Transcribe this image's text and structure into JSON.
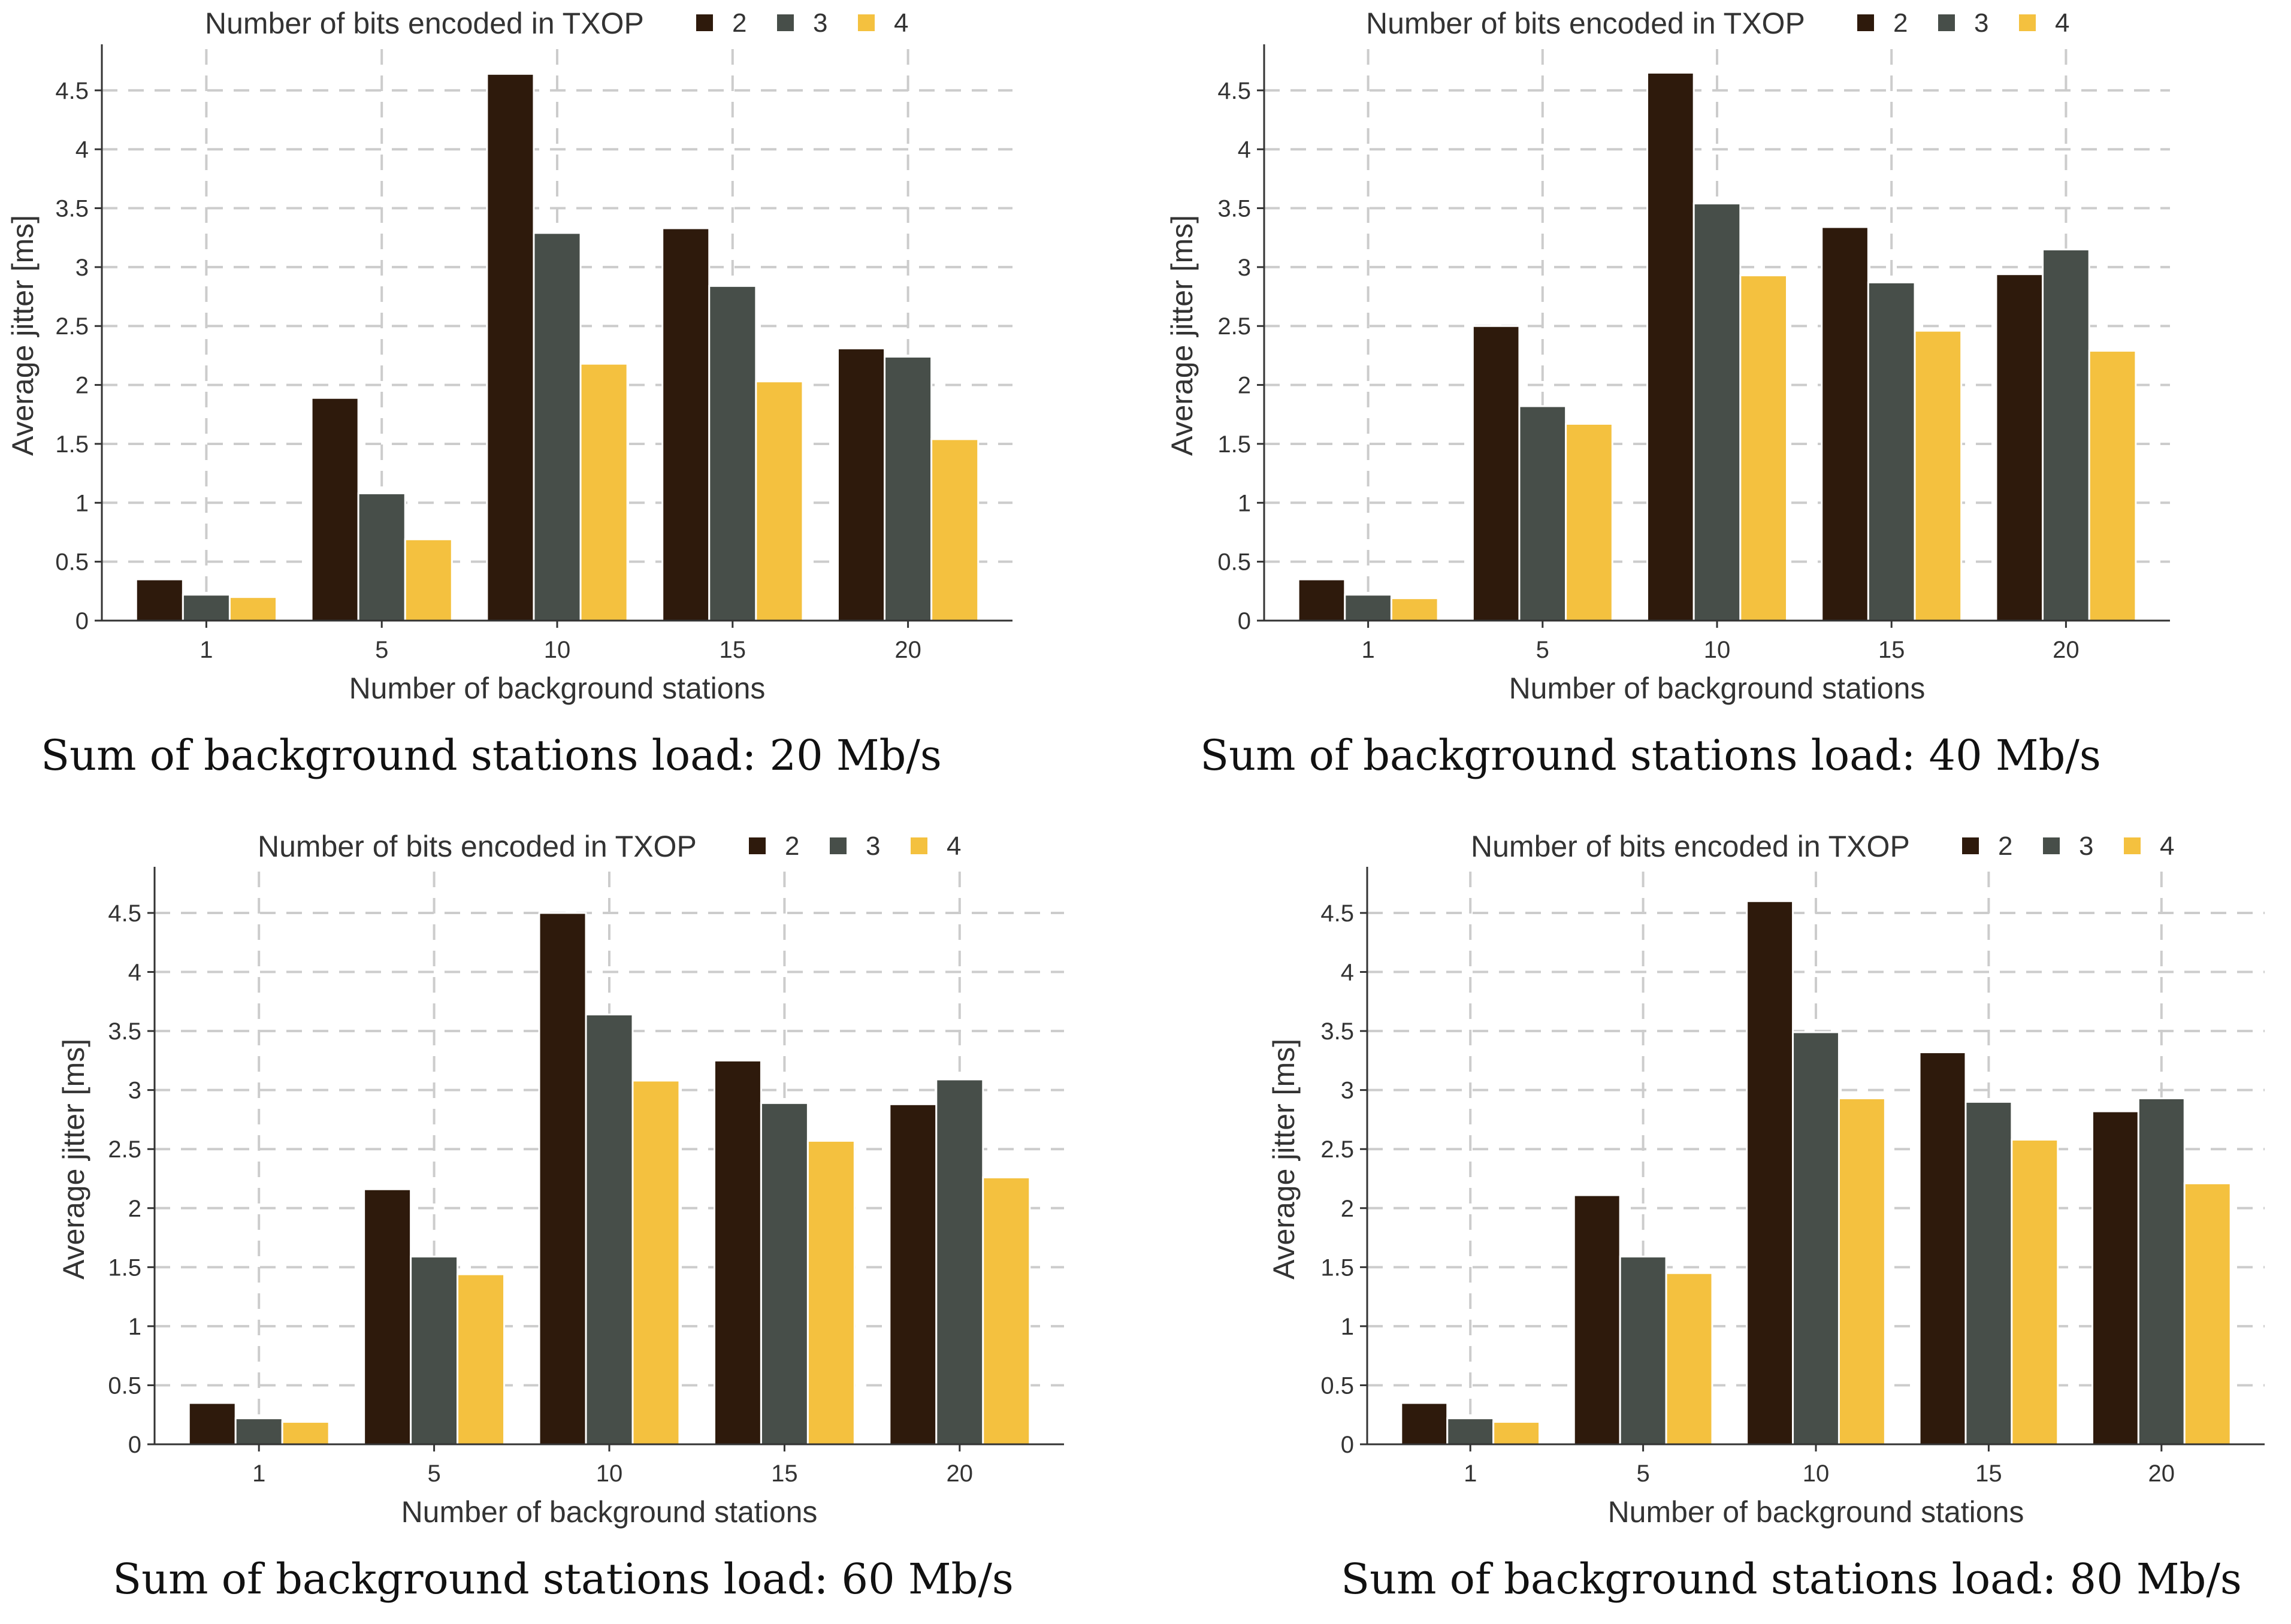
{
  "figure": {
    "colors": {
      "2": "#2e1a0c",
      "3": "#474e49",
      "4": "#f4c13f"
    },
    "legend_title": "Number of bits encoded in TXOP"
  },
  "chart_data": [
    {
      "type": "bar",
      "caption": "Sum of background stations load: 20 Mb/s",
      "xlabel": "Number of background stations",
      "ylabel": "Average jitter [ms]",
      "categories": [
        "1",
        "5",
        "10",
        "15",
        "20"
      ],
      "ylim": [
        0,
        4.85
      ],
      "yticks": [
        0,
        0.5,
        1,
        1.5,
        2,
        2.5,
        3,
        3.5,
        4,
        4.5
      ],
      "legend_title": "Number of bits encoded in TXOP",
      "series": [
        {
          "name": "2",
          "values": [
            0.35,
            1.89,
            4.64,
            3.33,
            2.31
          ]
        },
        {
          "name": "3",
          "values": [
            0.22,
            1.08,
            3.29,
            2.84,
            2.24
          ]
        },
        {
          "name": "4",
          "values": [
            0.2,
            0.69,
            2.18,
            2.03,
            1.54
          ]
        }
      ]
    },
    {
      "type": "bar",
      "caption": "Sum of background stations load: 40 Mb/s",
      "xlabel": "Number of background stations",
      "ylabel": "Average jitter [ms]",
      "categories": [
        "1",
        "5",
        "10",
        "15",
        "20"
      ],
      "ylim": [
        0,
        4.85
      ],
      "yticks": [
        0,
        0.5,
        1,
        1.5,
        2,
        2.5,
        3,
        3.5,
        4,
        4.5
      ],
      "legend_title": "Number of bits encoded in TXOP",
      "series": [
        {
          "name": "2",
          "values": [
            0.35,
            2.5,
            4.65,
            3.34,
            2.94
          ]
        },
        {
          "name": "3",
          "values": [
            0.22,
            1.82,
            3.54,
            2.87,
            3.15
          ]
        },
        {
          "name": "4",
          "values": [
            0.19,
            1.67,
            2.93,
            2.46,
            2.29
          ]
        }
      ]
    },
    {
      "type": "bar",
      "caption": "Sum of background stations load: 60 Mb/s",
      "xlabel": "Number of background stations",
      "ylabel": "Average jitter [ms]",
      "categories": [
        "1",
        "5",
        "10",
        "15",
        "20"
      ],
      "ylim": [
        0,
        4.85
      ],
      "yticks": [
        0,
        0.5,
        1,
        1.5,
        2,
        2.5,
        3,
        3.5,
        4,
        4.5
      ],
      "legend_title": "Number of bits encoded in TXOP",
      "series": [
        {
          "name": "2",
          "values": [
            0.35,
            2.16,
            4.5,
            3.25,
            2.88
          ]
        },
        {
          "name": "3",
          "values": [
            0.22,
            1.59,
            3.64,
            2.89,
            3.09
          ]
        },
        {
          "name": "4",
          "values": [
            0.19,
            1.44,
            3.08,
            2.57,
            2.26
          ]
        }
      ]
    },
    {
      "type": "bar",
      "caption": "Sum of background stations load: 80 Mb/s",
      "xlabel": "Number of background stations",
      "ylabel": "Average jitter [ms]",
      "categories": [
        "1",
        "5",
        "10",
        "15",
        "20"
      ],
      "ylim": [
        0,
        4.85
      ],
      "yticks": [
        0,
        0.5,
        1,
        1.5,
        2,
        2.5,
        3,
        3.5,
        4,
        4.5
      ],
      "legend_title": "Number of bits encoded in TXOP",
      "series": [
        {
          "name": "2",
          "values": [
            0.35,
            2.11,
            4.6,
            3.32,
            2.82
          ]
        },
        {
          "name": "3",
          "values": [
            0.22,
            1.59,
            3.49,
            2.9,
            2.93
          ]
        },
        {
          "name": "4",
          "values": [
            0.19,
            1.45,
            2.93,
            2.58,
            2.21
          ]
        }
      ]
    }
  ]
}
